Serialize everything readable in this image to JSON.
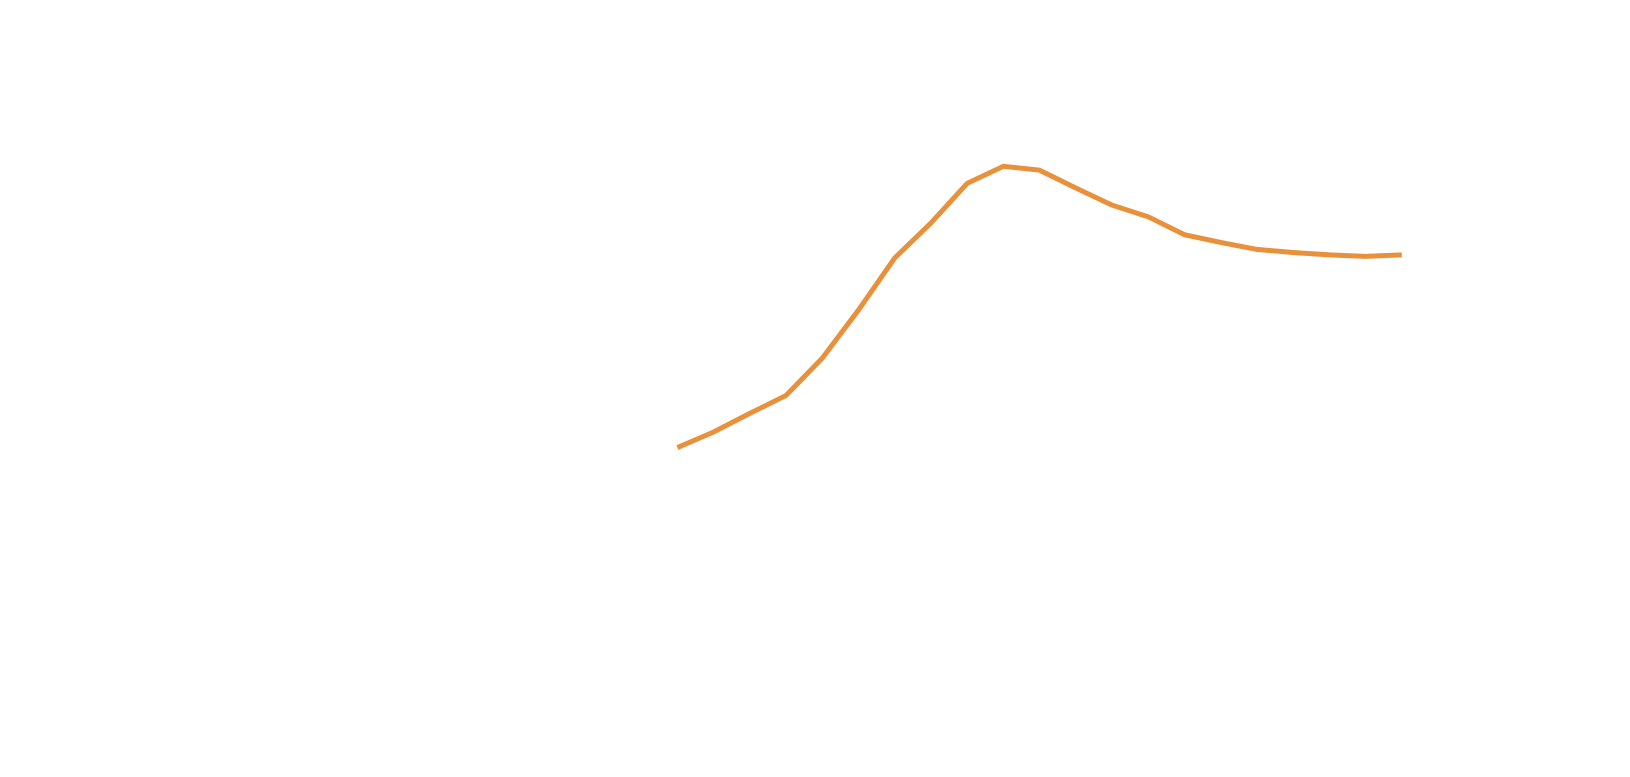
{
  "chart_data": {
    "type": "line",
    "title": "",
    "xlabel": "",
    "ylabel": "",
    "grid": false,
    "legend": "none",
    "x": [
      1,
      2,
      3,
      4,
      5,
      6,
      7,
      8,
      9,
      10,
      11,
      12,
      13,
      14,
      15,
      16,
      17,
      18,
      19,
      20,
      21
    ],
    "xlim": [
      -17.7,
      27.3
    ],
    "ylim": [
      0,
      100
    ],
    "series": [
      {
        "color": "#e8913a",
        "values": [
          42.4,
          44.4,
          46.8,
          49.1,
          53.9,
          60.1,
          66.8,
          71.3,
          76.4,
          78.6,
          78.1,
          75.8,
          73.6,
          72.1,
          69.8,
          68.8,
          67.9,
          67.5,
          67.2,
          67.0,
          67.2
        ]
      }
    ]
  }
}
